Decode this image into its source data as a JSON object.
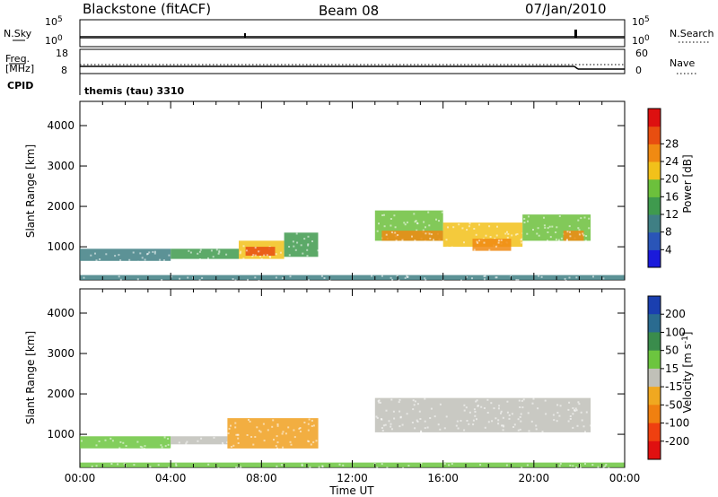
{
  "header": {
    "station": "Blackstone (fitACF)",
    "beam": "Beam 08",
    "date": "07/Jan/2010"
  },
  "noise_panel": {
    "left_label": "N.Sky",
    "right_label": "N.Search",
    "left_ticks": [
      "10^5",
      "10^0"
    ],
    "right_ticks": [
      "10^5",
      "10^0"
    ]
  },
  "freq_panel": {
    "left_label_top": "Freq.",
    "left_label_bottom": "[MHz]",
    "right_label": "Nave",
    "left_ticks": [
      "18",
      "8"
    ],
    "right_ticks": [
      "60",
      "0"
    ]
  },
  "cpid": {
    "label": "CPID",
    "mode": "themis (tau) 3310"
  },
  "colors": {
    "power_scale": [
      "#1a1adb",
      "#2a55b8",
      "#3f7f84",
      "#3f9a4e",
      "#6cc03c",
      "#f2c11a",
      "#f08a12",
      "#e84e10",
      "#dd1010"
    ],
    "velocity_scale": [
      "#1a3fb0",
      "#2a6b90",
      "#3a8c4c",
      "#6cc53f",
      "#c0c0b8",
      "#f0a820",
      "#f08010",
      "#ef4010",
      "#e01010"
    ],
    "velocity_series": {
      "ground_scatter": "#c0c0b8",
      "toward": "#6cc53f",
      "away": "#f0a020"
    }
  },
  "chart_data": [
    {
      "type": "heatmap",
      "title": "Power",
      "xlabel": "",
      "ylabel": "Slant Range [km]",
      "xlim": [
        0,
        24
      ],
      "ylim": [
        180,
        4600
      ],
      "x_ticks": [],
      "y_ticks": [
        1000,
        2000,
        3000,
        4000
      ],
      "colorbar": {
        "label": "Power [dB]",
        "range": [
          0,
          32
        ],
        "ticks": [
          4,
          8,
          12,
          16,
          20,
          24,
          28
        ]
      },
      "regions": [
        {
          "t0": 0.0,
          "t1": 4.0,
          "r0": 650,
          "r1": 950,
          "value": 8
        },
        {
          "t0": 4.0,
          "t1": 7.0,
          "r0": 700,
          "r1": 950,
          "value": 10
        },
        {
          "t0": 7.0,
          "t1": 9.0,
          "r0": 700,
          "r1": 1150,
          "value": 18
        },
        {
          "t0": 7.3,
          "t1": 8.6,
          "r0": 780,
          "r1": 1000,
          "value": 26
        },
        {
          "t0": 9.0,
          "t1": 10.5,
          "r0": 750,
          "r1": 1350,
          "value": 12
        },
        {
          "t0": 13.0,
          "t1": 16.0,
          "r0": 1150,
          "r1": 1900,
          "value": 16
        },
        {
          "t0": 13.3,
          "t1": 16.0,
          "r0": 1150,
          "r1": 1400,
          "value": 22
        },
        {
          "t0": 16.0,
          "t1": 19.5,
          "r0": 1000,
          "r1": 1600,
          "value": 18
        },
        {
          "t0": 17.3,
          "t1": 19.0,
          "r0": 900,
          "r1": 1200,
          "value": 24
        },
        {
          "t0": 19.5,
          "t1": 22.5,
          "r0": 1150,
          "r1": 1800,
          "value": 16
        },
        {
          "t0": 21.3,
          "t1": 22.2,
          "r0": 1150,
          "r1": 1400,
          "value": 24
        },
        {
          "t0": 0.0,
          "t1": 24.0,
          "r0": 180,
          "r1": 300,
          "value": 6
        }
      ]
    },
    {
      "type": "heatmap",
      "title": "Velocity",
      "xlabel": "Time UT",
      "ylabel": "Slant Range [km]",
      "xlim": [
        0,
        24
      ],
      "ylim": [
        180,
        4600
      ],
      "x_ticks": [
        "00:00",
        "04:00",
        "08:00",
        "12:00",
        "16:00",
        "20:00",
        "00:00"
      ],
      "y_ticks": [
        1000,
        2000,
        3000,
        4000
      ],
      "colorbar": {
        "label": "Velocity [m s^-1]",
        "ticks": [
          200,
          100,
          50,
          15,
          -15,
          -50,
          -100,
          -200
        ]
      },
      "regions": [
        {
          "t0": 0.0,
          "t1": 4.0,
          "r0": 650,
          "r1": 950,
          "class": "toward"
        },
        {
          "t0": 4.0,
          "t1": 6.5,
          "r0": 750,
          "r1": 950,
          "class": "ground_scatter"
        },
        {
          "t0": 6.5,
          "t1": 10.5,
          "r0": 650,
          "r1": 1400,
          "class": "away"
        },
        {
          "t0": 13.0,
          "t1": 22.5,
          "r0": 1050,
          "r1": 1900,
          "class": "ground_scatter"
        },
        {
          "t0": 0.0,
          "t1": 24.0,
          "r0": 180,
          "r1": 300,
          "class": "toward"
        }
      ]
    }
  ]
}
